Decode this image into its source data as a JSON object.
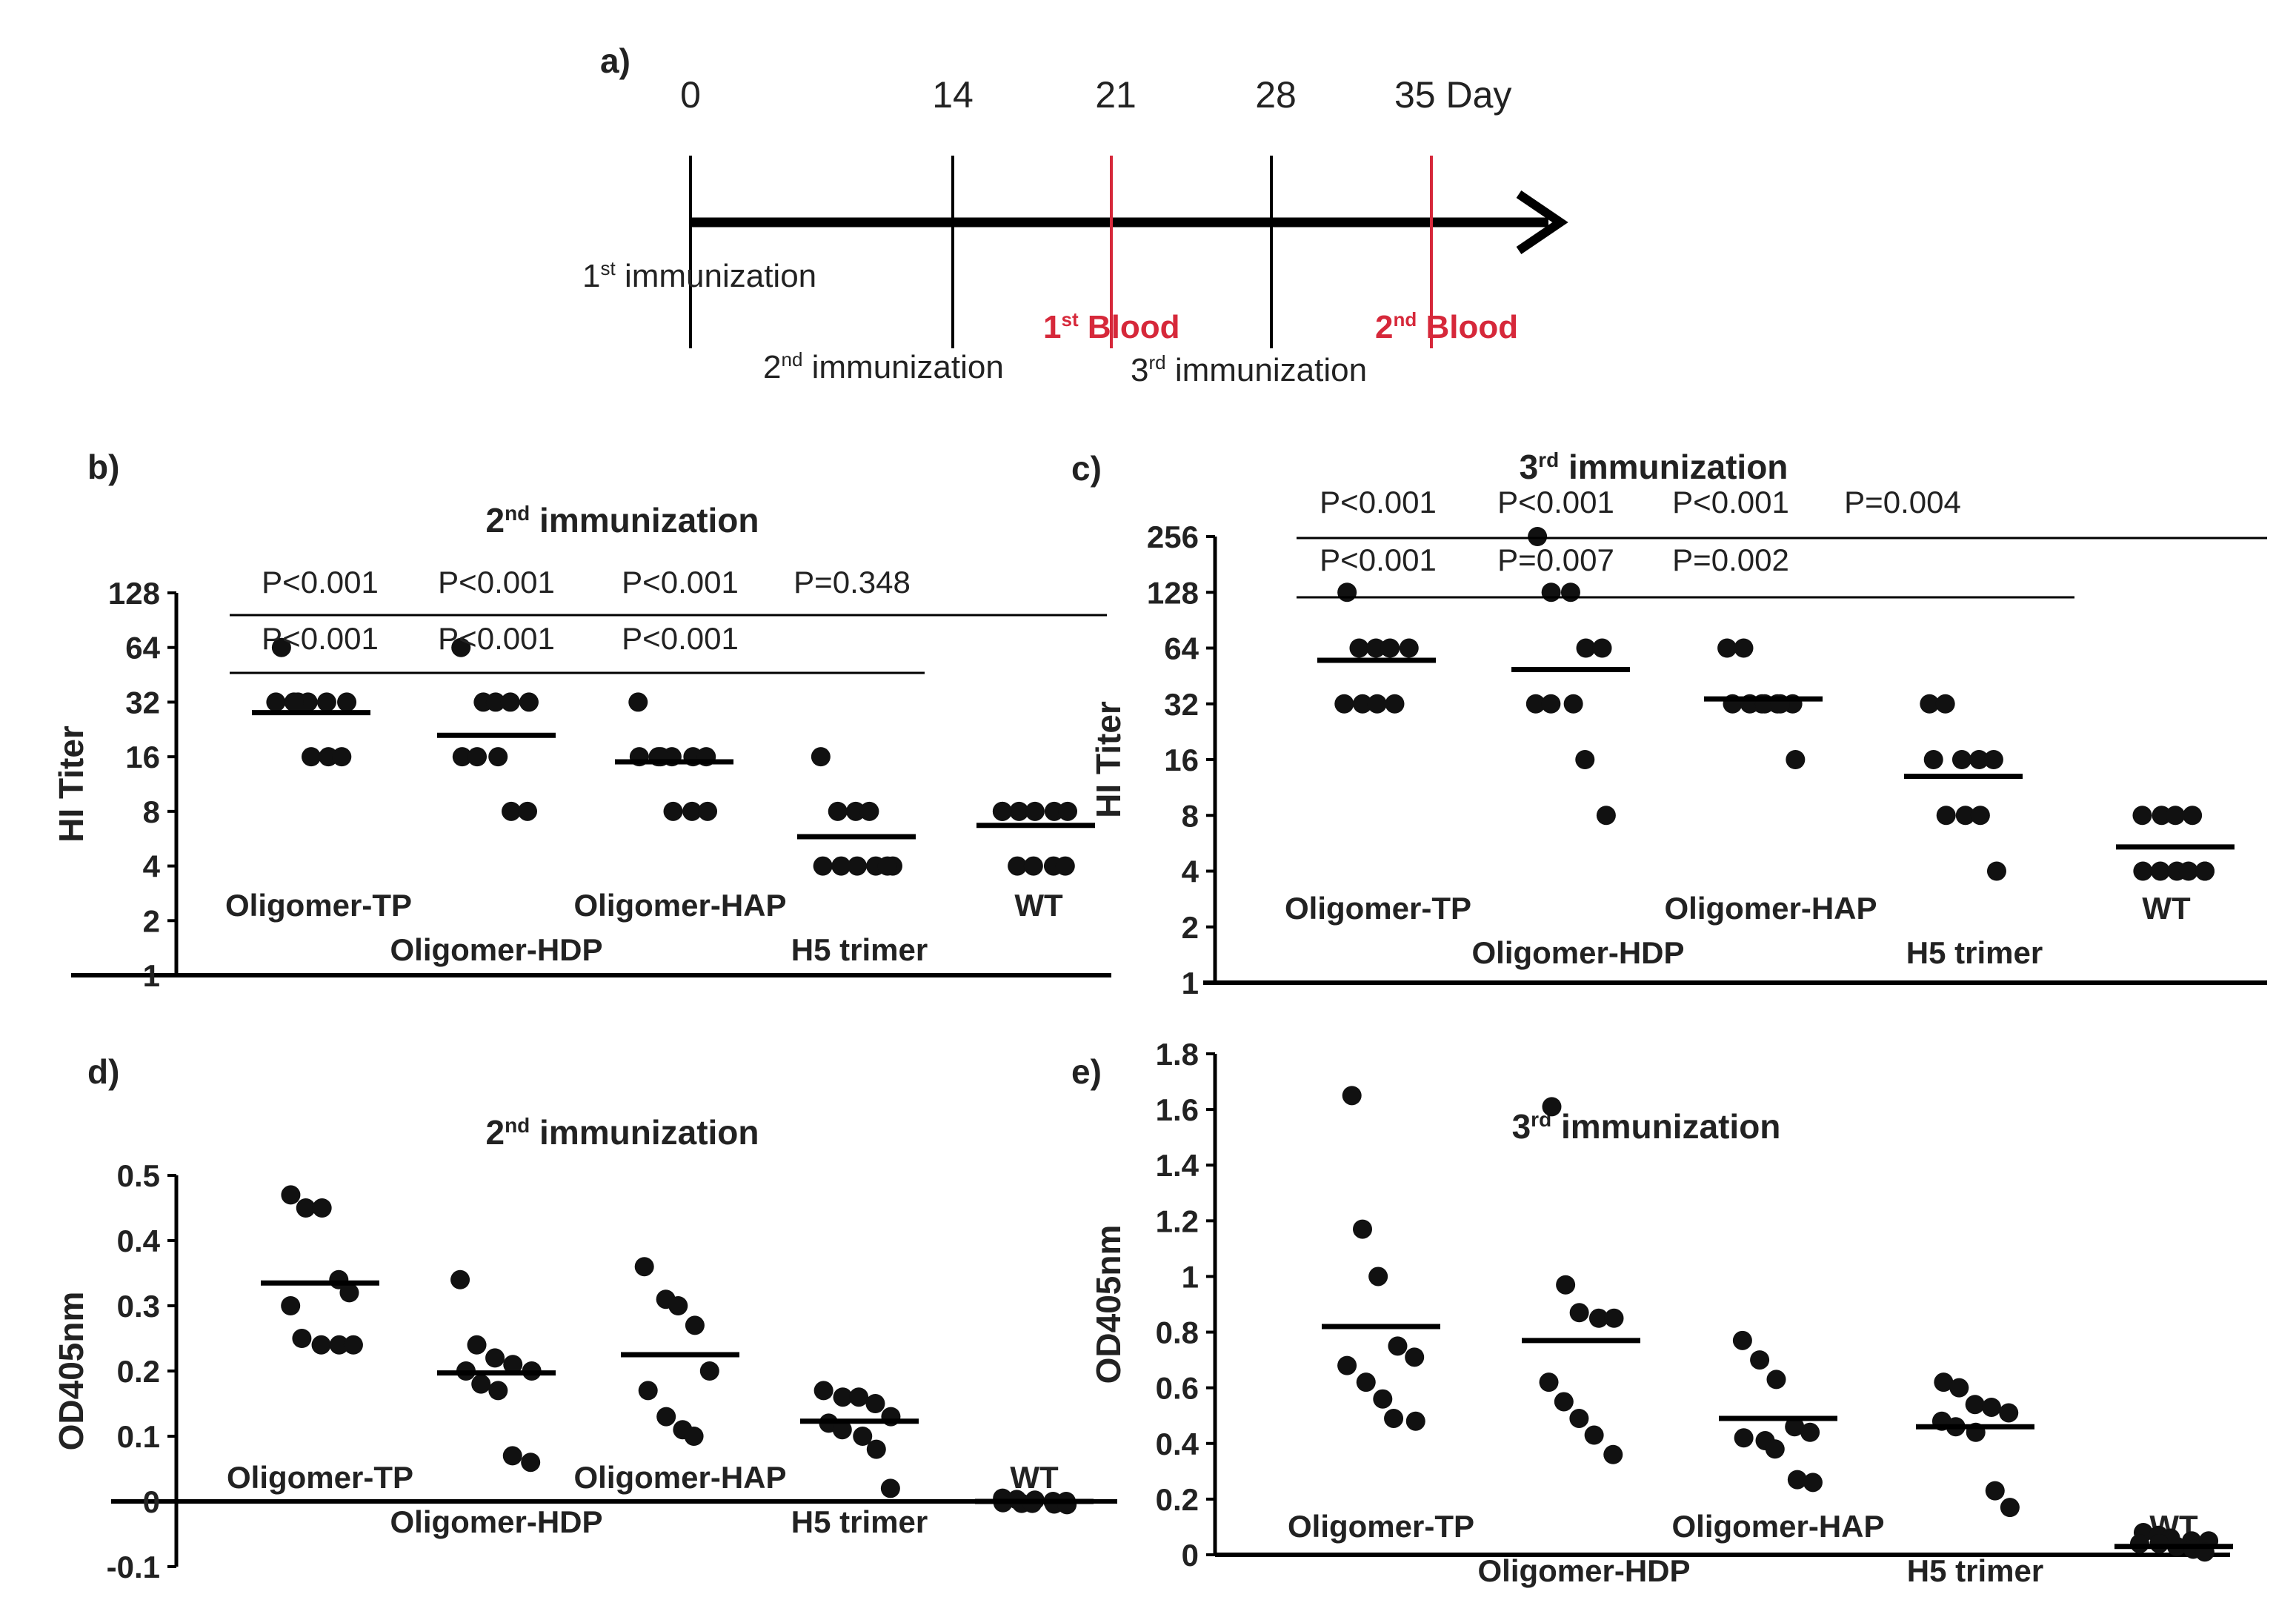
{
  "panels": {
    "a": "a)",
    "b": "b)",
    "c": "c)",
    "d": "d)",
    "e": "e)"
  },
  "timeline": {
    "days": [
      "0",
      "14",
      "21",
      "28",
      "35 Day"
    ],
    "events": {
      "imm1": {
        "pre": "1",
        "sup": "st",
        "post": " immunization"
      },
      "imm2": {
        "pre": "2",
        "sup": "nd",
        "post": " immunization"
      },
      "imm3": {
        "pre": "3",
        "sup": "rd",
        "post": " immunization"
      },
      "blood1": {
        "pre": "1",
        "sup": "st",
        "post": " Blood"
      },
      "blood2": {
        "pre": "2",
        "sup": "nd",
        "post": " Blood"
      }
    },
    "colors": {
      "line": "#000000",
      "blood": "#d6283a"
    }
  },
  "chart_data": [
    {
      "panel": "b",
      "type": "scatter",
      "title": {
        "pre": "2",
        "sup": "nd",
        "post": " immunization"
      },
      "ylabel": "HI Titer",
      "yscale": "log2",
      "ylim": [
        1,
        128
      ],
      "yticks": [
        "1",
        "2",
        "4",
        "8",
        "16",
        "32",
        "64",
        "128"
      ],
      "categories": [
        "Oligomer-TP",
        "Oligomer-HDP",
        "Oligomer-HAP",
        "H5 trimer",
        "WT"
      ],
      "points": [
        [
          64,
          32,
          32,
          32,
          32,
          32,
          32,
          16,
          16,
          16
        ],
        [
          64,
          32,
          32,
          32,
          32,
          16,
          16,
          16,
          8,
          8
        ],
        [
          32,
          16,
          16,
          16,
          16,
          16,
          16,
          8,
          8,
          8
        ],
        [
          16,
          8,
          8,
          8,
          4,
          4,
          4,
          4,
          4,
          4
        ],
        [
          8,
          8,
          8,
          8,
          8,
          8,
          4,
          4,
          4,
          4
        ]
      ],
      "means": [
        28,
        21,
        15,
        5.8,
        6.7
      ],
      "pvalues_top": [
        "P<0.001",
        "P<0.001",
        "P<0.001",
        "P=0.348"
      ],
      "pvalues_bottom": [
        "P<0.001",
        "P<0.001",
        "P<0.001"
      ]
    },
    {
      "panel": "c",
      "type": "scatter",
      "title": {
        "pre": "3",
        "sup": "rd",
        "post": " immunization"
      },
      "ylabel": "HI Titer",
      "yscale": "log2",
      "ylim": [
        1,
        256
      ],
      "yticks": [
        "1",
        "2",
        "4",
        "8",
        "16",
        "32",
        "64",
        "128",
        "256"
      ],
      "categories": [
        "Oligomer-TP",
        "Oligomer-HDP",
        "Oligomer-HAP",
        "H5 trimer",
        "WT"
      ],
      "points": [
        [
          128,
          64,
          64,
          64,
          64,
          32,
          32,
          32,
          32
        ],
        [
          256,
          128,
          128,
          64,
          64,
          32,
          32,
          32,
          16,
          8
        ],
        [
          64,
          64,
          32,
          32,
          32,
          32,
          32,
          32,
          32,
          16
        ],
        [
          32,
          32,
          16,
          16,
          16,
          16,
          8,
          8,
          8,
          4
        ],
        [
          8,
          8,
          8,
          8,
          4,
          4,
          4,
          4,
          4,
          4
        ]
      ],
      "means": [
        55,
        49,
        34,
        13,
        5.4
      ],
      "pvalues_top": [
        "P<0.001",
        "P<0.001",
        "P<0.001",
        "P=0.004"
      ],
      "pvalues_bottom": [
        "P<0.001",
        "P=0.007",
        "P=0.002"
      ]
    },
    {
      "panel": "d",
      "type": "scatter",
      "title": {
        "pre": "2",
        "sup": "nd",
        "post": " immunization"
      },
      "ylabel": "OD405nm",
      "yscale": "linear",
      "ylim": [
        -0.1,
        0.5
      ],
      "yticks": [
        "-0.1",
        "0",
        "0.1",
        "0.2",
        "0.3",
        "0.4",
        "0.5"
      ],
      "categories": [
        "Oligomer-TP",
        "Oligomer-HDP",
        "Oligomer-HAP",
        "H5 trimer",
        "WT"
      ],
      "points": [
        [
          0.47,
          0.45,
          0.45,
          0.34,
          0.32,
          0.3,
          0.25,
          0.24,
          0.24,
          0.24
        ],
        [
          0.34,
          0.24,
          0.22,
          0.21,
          0.2,
          0.2,
          0.18,
          0.17,
          0.07,
          0.06
        ],
        [
          0.36,
          0.31,
          0.3,
          0.27,
          0.2,
          0.17,
          0.13,
          0.11,
          0.1
        ],
        [
          0.17,
          0.16,
          0.16,
          0.15,
          0.13,
          0.12,
          0.11,
          0.1,
          0.08,
          0.02
        ],
        [
          0.005,
          0.003,
          0.002,
          0.0,
          0.0,
          -0.002,
          -0.003,
          -0.003,
          -0.004,
          -0.005
        ]
      ],
      "means": [
        0.335,
        0.197,
        0.225,
        0.123,
        0.0
      ]
    },
    {
      "panel": "e",
      "type": "scatter",
      "title": {
        "pre": "3",
        "sup": "rd",
        "post": " immunization"
      },
      "ylabel": "OD405nm",
      "yscale": "linear",
      "ylim": [
        0,
        1.8
      ],
      "yticks": [
        "0",
        "0.2",
        "0.4",
        "0.6",
        "0.8",
        "1",
        "1.2",
        "1.4",
        "1.6",
        "1.8"
      ],
      "categories": [
        "Oligomer-TP",
        "Oligomer-HDP",
        "Oligomer-HAP",
        "H5 trimer",
        "WT"
      ],
      "points": [
        [
          1.65,
          1.17,
          1.0,
          0.75,
          0.71,
          0.68,
          0.62,
          0.56,
          0.49,
          0.48
        ],
        [
          1.61,
          0.97,
          0.87,
          0.85,
          0.85,
          0.62,
          0.55,
          0.49,
          0.43,
          0.36
        ],
        [
          0.77,
          0.7,
          0.63,
          0.46,
          0.44,
          0.42,
          0.41,
          0.38,
          0.27,
          0.26
        ],
        [
          0.62,
          0.6,
          0.54,
          0.53,
          0.51,
          0.48,
          0.46,
          0.44,
          0.23,
          0.17
        ],
        [
          0.08,
          0.07,
          0.06,
          0.05,
          0.05,
          0.04,
          0.04,
          0.03,
          0.02,
          0.01
        ]
      ],
      "means": [
        0.82,
        0.77,
        0.49,
        0.46,
        0.03
      ]
    }
  ]
}
